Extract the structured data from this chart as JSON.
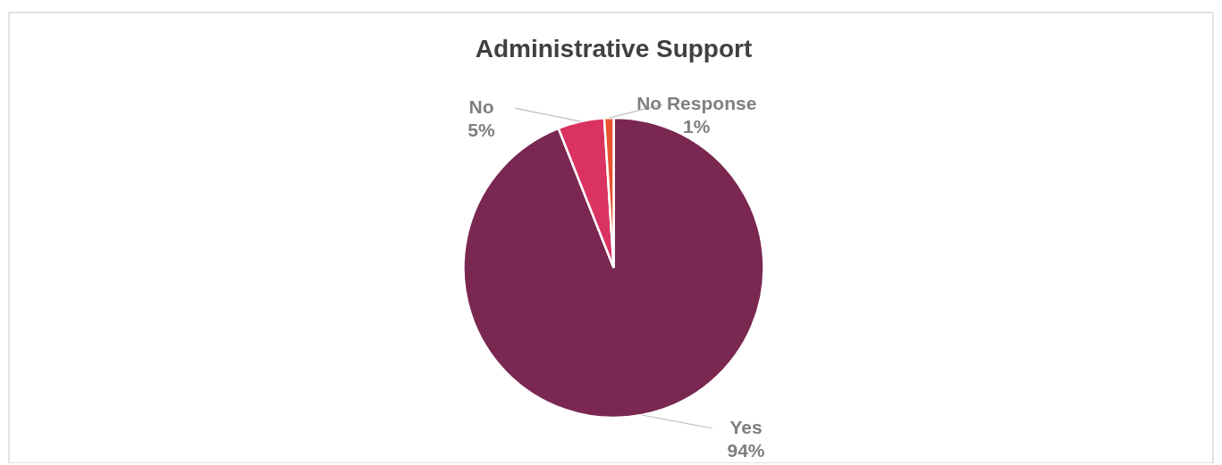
{
  "chart_data": {
    "type": "pie",
    "title": "Administrative Support",
    "categories": [
      "Yes",
      "No",
      "No Response"
    ],
    "values": [
      94,
      5,
      1
    ],
    "colors": [
      "#7a2752",
      "#da3361",
      "#e8532f"
    ],
    "value_labels": [
      "94%",
      "5%",
      "1%"
    ],
    "legend": false
  }
}
